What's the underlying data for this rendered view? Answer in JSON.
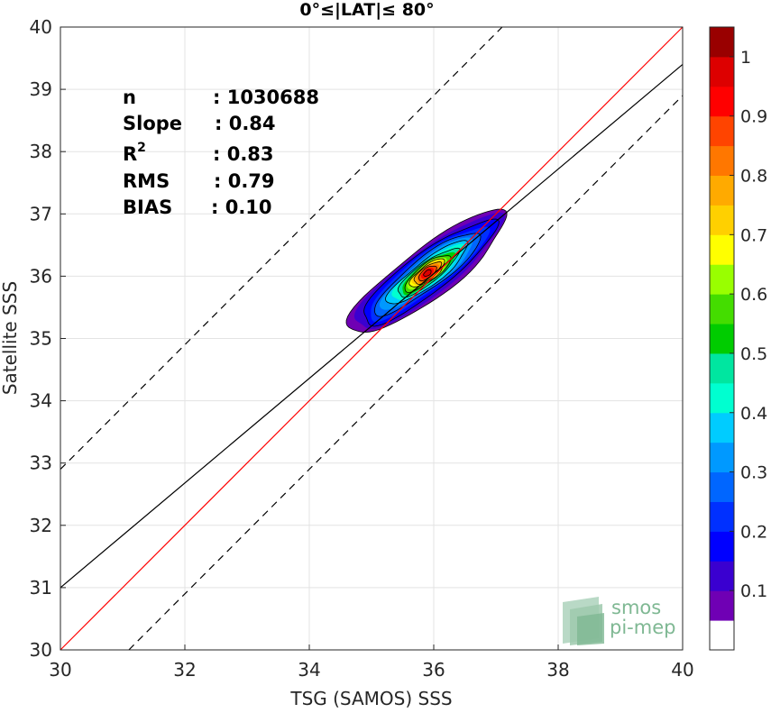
{
  "chart_data": {
    "type": "scatter",
    "subtype": "density-contour",
    "title": "0°≤|LAT|≤ 80°",
    "xlabel": "TSG (SAMOS) SSS",
    "ylabel": "Satellite SSS",
    "xlim": [
      30,
      40
    ],
    "ylim": [
      30,
      40
    ],
    "xticks": [
      30,
      32,
      34,
      36,
      38,
      40
    ],
    "yticks": [
      30,
      31,
      32,
      33,
      34,
      35,
      36,
      37,
      38,
      39,
      40
    ],
    "grid": true,
    "stats": [
      {
        "label": "n",
        "value": ": 1030688"
      },
      {
        "label": "Slope",
        "value": ": 0.84"
      },
      {
        "label": "R",
        "sup": "2",
        "value": ": 0.83"
      },
      {
        "label": "RMS",
        "value": ": 0.79"
      },
      {
        "label": "BIAS",
        "value": ": 0.10"
      }
    ],
    "lines": {
      "one_to_one": {
        "color": "#ff0000",
        "slope": 1.0,
        "intercept": 0.0
      },
      "fit": {
        "color": "#000000",
        "slope": 0.84,
        "intercept": 5.8
      },
      "offset_upper": {
        "color": "#000000",
        "style": "dashed",
        "slope": 1.0,
        "intercept": 2.9
      },
      "offset_lower": {
        "color": "#000000",
        "style": "dashed",
        "slope": 1.0,
        "intercept": -1.1
      }
    },
    "density": {
      "center": [
        35.9,
        36.05
      ],
      "angle_deg": 37,
      "levels": [
        {
          "level": 0.05,
          "a": 1.55,
          "b": 0.4
        },
        {
          "level": 0.1,
          "a": 1.45,
          "b": 0.36
        },
        {
          "level": 0.15,
          "a": 1.32,
          "b": 0.32
        },
        {
          "level": 0.2,
          "a": 1.18,
          "b": 0.28
        },
        {
          "level": 0.25,
          "a": 1.05,
          "b": 0.25
        },
        {
          "level": 0.3,
          "a": 0.92,
          "b": 0.22
        },
        {
          "level": 0.35,
          "a": 0.8,
          "b": 0.2
        },
        {
          "level": 0.4,
          "a": 0.7,
          "b": 0.18
        },
        {
          "level": 0.45,
          "a": 0.6,
          "b": 0.165
        },
        {
          "level": 0.5,
          "a": 0.52,
          "b": 0.15
        },
        {
          "level": 0.55,
          "a": 0.45,
          "b": 0.14
        },
        {
          "level": 0.6,
          "a": 0.39,
          "b": 0.13
        },
        {
          "level": 0.65,
          "a": 0.34,
          "b": 0.12
        },
        {
          "level": 0.7,
          "a": 0.3,
          "b": 0.11
        },
        {
          "level": 0.75,
          "a": 0.26,
          "b": 0.1
        },
        {
          "level": 0.8,
          "a": 0.21,
          "b": 0.09
        },
        {
          "level": 0.85,
          "a": 0.17,
          "b": 0.075
        },
        {
          "level": 0.9,
          "a": 0.12,
          "b": 0.06
        },
        {
          "level": 0.95,
          "a": 0.07,
          "b": 0.04
        }
      ]
    },
    "colorbar": {
      "ticks": [
        "0.1",
        "0.2",
        "0.3",
        "0.4",
        "0.5",
        "0.6",
        "0.7",
        "0.8",
        "0.9",
        "1"
      ],
      "colors": [
        "#ffffff",
        "#6f00b4",
        "#3a00d0",
        "#0000ff",
        "#0030ff",
        "#0066ff",
        "#0099ff",
        "#00ccff",
        "#00ffd0",
        "#00e6a0",
        "#00cc00",
        "#44dd00",
        "#99ff00",
        "#ffff00",
        "#ffd000",
        "#ffaa00",
        "#ff7700",
        "#ff4400",
        "#ff0000",
        "#dd0000",
        "#990000"
      ]
    }
  },
  "watermark": {
    "line1": "smos",
    "line2": "pi-mep"
  }
}
